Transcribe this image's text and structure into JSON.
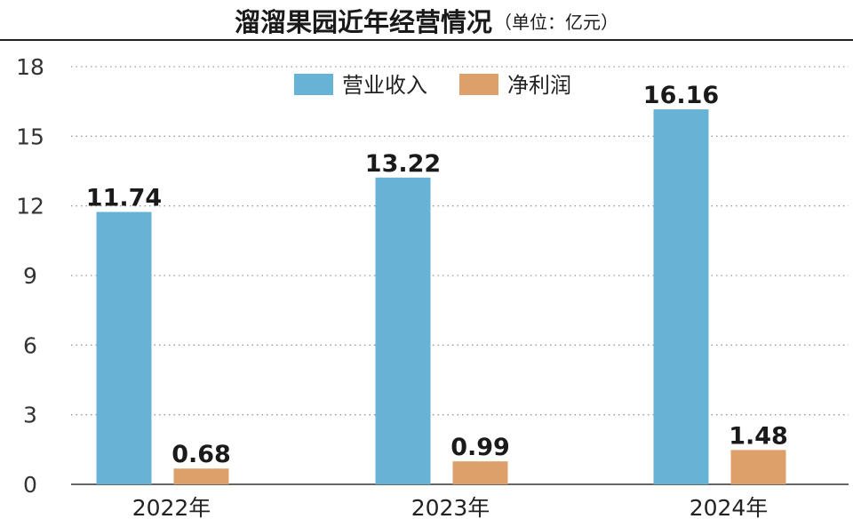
{
  "chart_data": {
    "type": "bar",
    "title": "溜溜果园近年经营情况",
    "subtitle": "（单位：亿元）",
    "xlabel": "",
    "ylabel": "",
    "categories": [
      "2022年",
      "2023年",
      "2024年"
    ],
    "series": [
      {
        "name": "营业收入",
        "values": [
          11.74,
          13.22,
          16.16
        ],
        "color": "#67b3d6"
      },
      {
        "name": "净利润",
        "values": [
          0.68,
          0.99,
          1.48
        ],
        "color": "#dea06a"
      }
    ],
    "value_labels": [
      [
        "11.74",
        "13.22",
        "16.16"
      ],
      [
        "0.68",
        "0.99",
        "1.48"
      ]
    ],
    "ylim": [
      0,
      18
    ],
    "yticks": [
      "0",
      "3",
      "6",
      "9",
      "12",
      "15",
      "18"
    ],
    "grid": true,
    "grid_style": "dotted",
    "legend_position": "top-center"
  }
}
